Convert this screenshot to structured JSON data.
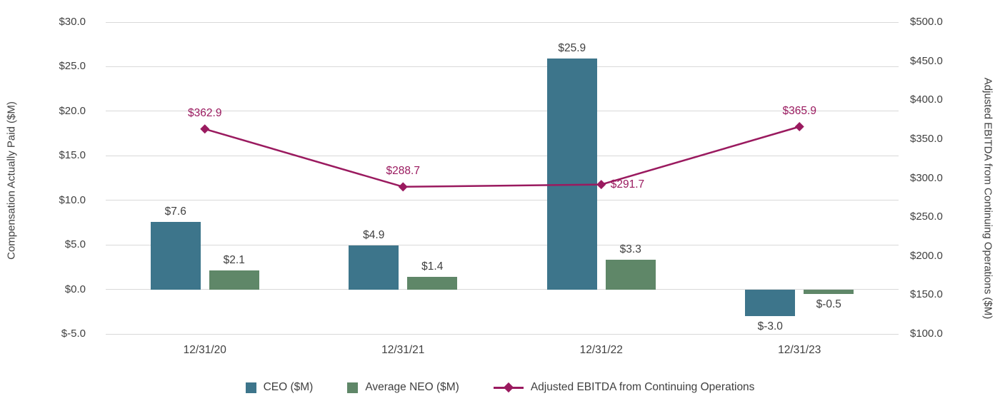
{
  "chart_data": {
    "type": "bar",
    "subtype": "combo-bar-line-dual-axis",
    "categories": [
      "12/31/20",
      "12/31/21",
      "12/31/22",
      "12/31/23"
    ],
    "bar_series": [
      {
        "name": "CEO ($M)",
        "color": "#3D758B",
        "values": [
          7.6,
          4.9,
          25.9,
          -3.0
        ],
        "labels": [
          "$7.6",
          "$4.9",
          "$25.9",
          "$-3.0"
        ]
      },
      {
        "name": "Average NEO ($M)",
        "color": "#5F8768",
        "values": [
          2.1,
          1.4,
          3.3,
          -0.5
        ],
        "labels": [
          "$2.1",
          "$1.4",
          "$3.3",
          "$-0.5"
        ]
      }
    ],
    "line_series": {
      "name": "Adjusted EBITDA from Continuing Operations",
      "color": "#9A1A5F",
      "values": [
        362.9,
        288.7,
        291.7,
        365.9
      ],
      "labels": [
        "$362.9",
        "$288.7",
        "$291.7",
        "$365.9"
      ],
      "label_positions": [
        "above",
        "above",
        "right",
        "above"
      ]
    },
    "left_axis": {
      "title": "Compensation Actually Paid ($M)",
      "min": -5,
      "max": 30,
      "step": 5,
      "tick_labels": [
        "$30.0",
        "$25.0",
        "$20.0",
        "$15.0",
        "$10.0",
        "$5.0",
        "$0.0",
        "$-5.0"
      ]
    },
    "right_axis": {
      "title": "Adjusted EBITDA from Continuing Operations ($M)",
      "min": 100,
      "max": 500,
      "step": 50,
      "tick_labels": [
        "$500.0",
        "$450.0",
        "$400.0",
        "$350.0",
        "$300.0",
        "$250.0",
        "$200.0",
        "$150.0",
        "$100.0"
      ]
    },
    "grid": true,
    "gridline_color": "#d9d9d9",
    "legend_position": "bottom"
  }
}
